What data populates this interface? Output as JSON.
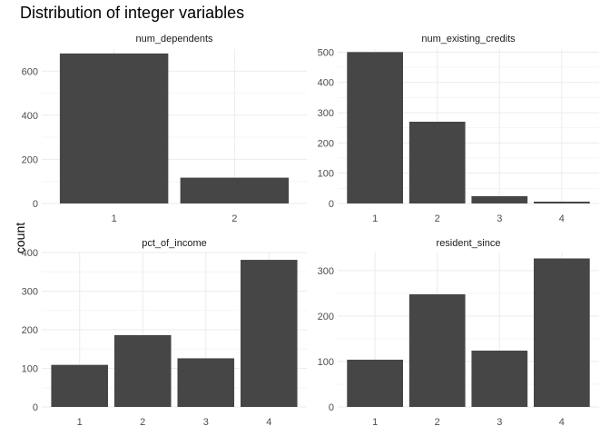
{
  "title": "Distribution of integer variables",
  "ylabel": "count",
  "colors": {
    "bar": "#464646",
    "grid_major": "#ebebeb",
    "grid_minor": "#f5f5f5"
  },
  "chart_data": [
    {
      "type": "bar",
      "title": "num_dependents",
      "categories": [
        "1",
        "2"
      ],
      "values": [
        680,
        117
      ],
      "ylim": [
        0,
        700
      ],
      "yticks": [
        0,
        200,
        400,
        600
      ]
    },
    {
      "type": "bar",
      "title": "num_existing_credits",
      "categories": [
        "1",
        "2",
        "3",
        "4"
      ],
      "values": [
        500,
        270,
        24,
        6
      ],
      "ylim": [
        0,
        510
      ],
      "yticks": [
        0,
        100,
        200,
        300,
        400,
        500
      ]
    },
    {
      "type": "bar",
      "title": "pct_of_income",
      "categories": [
        "1",
        "2",
        "3",
        "4"
      ],
      "values": [
        109,
        186,
        126,
        381
      ],
      "ylim": [
        0,
        400
      ],
      "yticks": [
        0,
        100,
        200,
        300,
        400
      ]
    },
    {
      "type": "bar",
      "title": "resident_since",
      "categories": [
        "1",
        "2",
        "3",
        "4"
      ],
      "values": [
        104,
        248,
        124,
        327
      ],
      "ylim": [
        0,
        340
      ],
      "yticks": [
        0,
        100,
        200,
        300
      ]
    }
  ]
}
